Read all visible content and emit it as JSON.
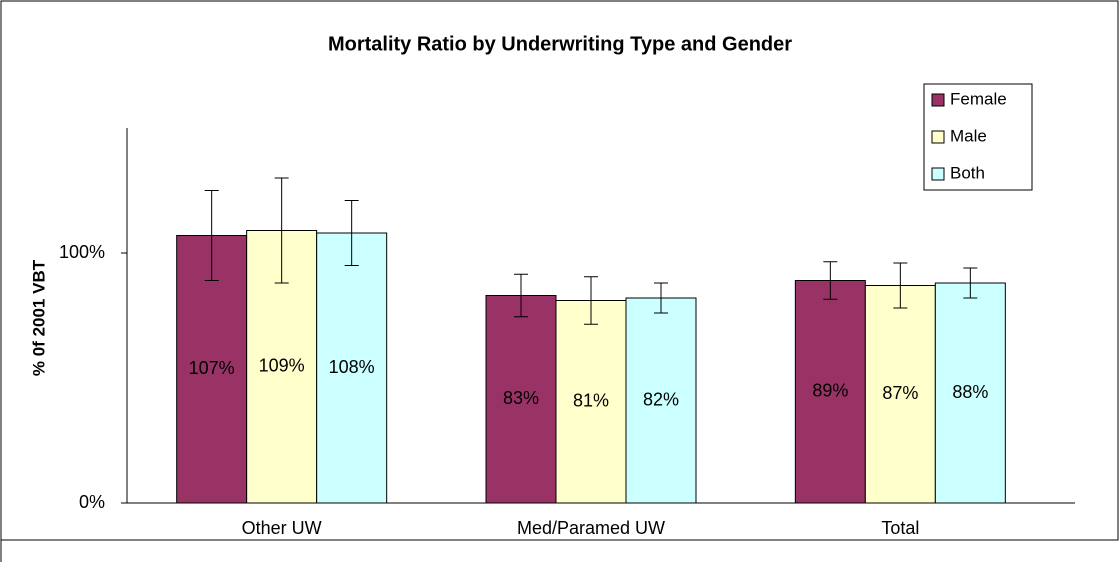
{
  "chart_data": {
    "type": "bar",
    "title": "Mortality Ratio by Underwriting Type and Gender",
    "ylabel": "% 0f 2001 VBT",
    "categories": [
      "Other UW",
      "Med/Paramed UW",
      "Total"
    ],
    "series": [
      {
        "name": "Female",
        "color": "#993366",
        "values": [
          107,
          83,
          89
        ],
        "value_labels": [
          "107%",
          "83%",
          "89%"
        ],
        "errors": [
          18,
          8.5,
          7.5
        ]
      },
      {
        "name": "Male",
        "color": "#ffffcc",
        "values": [
          109,
          81,
          87
        ],
        "value_labels": [
          "109%",
          "81%",
          "87%"
        ],
        "errors": [
          21,
          9.5,
          9
        ]
      },
      {
        "name": "Both",
        "color": "#ccffff",
        "values": [
          108,
          82,
          88
        ],
        "value_labels": [
          "108%",
          "82%",
          "88%"
        ],
        "errors": [
          13,
          6,
          6
        ]
      }
    ],
    "ylim": [
      0,
      150
    ],
    "yticks": [
      {
        "value": 0,
        "label": "0%"
      },
      {
        "value": 100,
        "label": "100%"
      }
    ],
    "grid": false,
    "legend": "upper right"
  }
}
